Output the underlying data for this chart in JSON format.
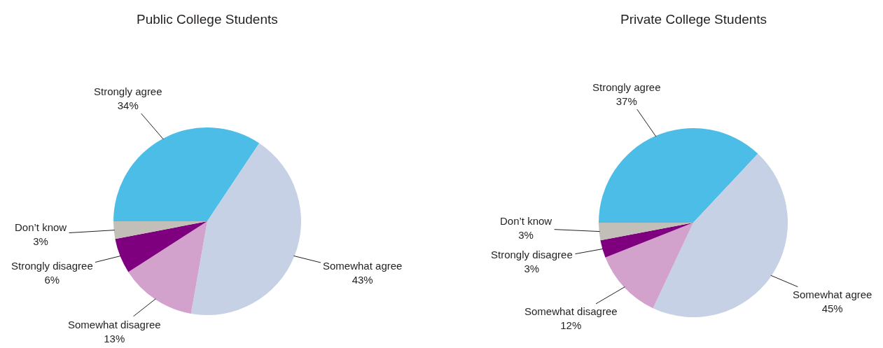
{
  "chart_data": [
    {
      "type": "pie",
      "title": "Public College Students",
      "categories": [
        "Strongly agree",
        "Somewhat agree",
        "Somewhat disagree",
        "Strongly disagree",
        "Don’t know"
      ],
      "values": [
        34,
        43,
        13,
        6,
        3
      ],
      "value_labels": [
        "34%",
        "43%",
        "13%",
        "6%",
        "3%"
      ],
      "colors": [
        "#4bbde6",
        "#c6d1e5",
        "#d2a2cc",
        "#7f007f",
        "#c2bfb8"
      ]
    },
    {
      "type": "pie",
      "title": "Private College Students",
      "categories": [
        "Strongly agree",
        "Somewhat agree",
        "Somewhat disagree",
        "Strongly disagree",
        "Don’t know"
      ],
      "values": [
        37,
        45,
        12,
        3,
        3
      ],
      "value_labels": [
        "37%",
        "45%",
        "12%",
        "3%",
        "3%"
      ],
      "colors": [
        "#4bbde6",
        "#c6d1e5",
        "#d2a2cc",
        "#7f007f",
        "#c2bfb8"
      ]
    }
  ]
}
